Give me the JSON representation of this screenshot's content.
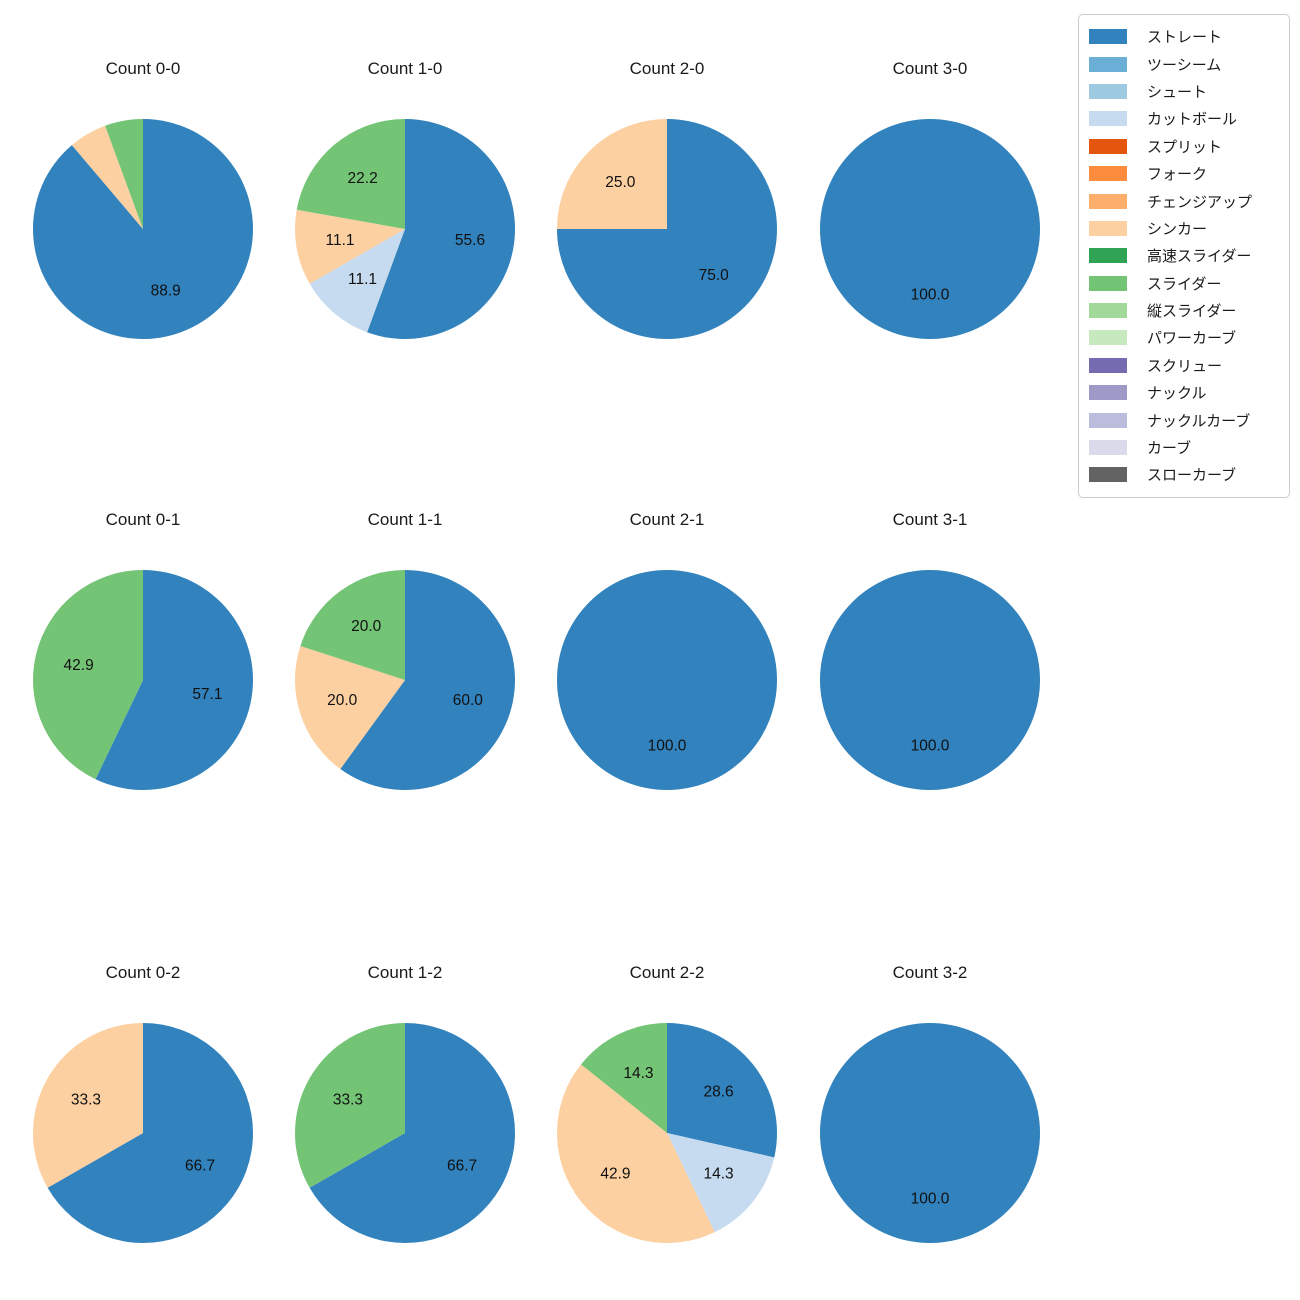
{
  "figure": {
    "background": "#ffffff"
  },
  "chart_data": {
    "type": "pie",
    "layout": {
      "rows": 3,
      "cols": 4,
      "legend_position": "upper-right",
      "start_angle_deg": 90,
      "direction": "clockwise",
      "grid": false
    },
    "legend": {
      "items": [
        {
          "label": "ストレート",
          "color": "#3182bd"
        },
        {
          "label": "ツーシーム",
          "color": "#6baed6"
        },
        {
          "label": "シュート",
          "color": "#9ecae1"
        },
        {
          "label": "カットボール",
          "color": "#c6dbef"
        },
        {
          "label": "スプリット",
          "color": "#e6550d"
        },
        {
          "label": "フォーク",
          "color": "#fd8d3c"
        },
        {
          "label": "チェンジアップ",
          "color": "#fdae6b"
        },
        {
          "label": "シンカー",
          "color": "#fdd0a2"
        },
        {
          "label": "高速スライダー",
          "color": "#31a354"
        },
        {
          "label": "スライダー",
          "color": "#74c476"
        },
        {
          "label": "縦スライダー",
          "color": "#a1d99b"
        },
        {
          "label": "パワーカーブ",
          "color": "#c7e9c0"
        },
        {
          "label": "スクリュー",
          "color": "#756bb1"
        },
        {
          "label": "ナックル",
          "color": "#9e9ac8"
        },
        {
          "label": "ナックルカーブ",
          "color": "#bcbddc"
        },
        {
          "label": "カーブ",
          "color": "#dadaeb"
        },
        {
          "label": "スローカーブ",
          "color": "#636363"
        }
      ]
    },
    "charts": [
      {
        "title": "Count 0-0",
        "slices": [
          {
            "name": "ストレート",
            "value": 88.9,
            "label": "88.9"
          },
          {
            "name": "シンカー",
            "value": 5.6,
            "label": null
          },
          {
            "name": "スライダー",
            "value": 5.6,
            "label": null
          }
        ]
      },
      {
        "title": "Count 1-0",
        "slices": [
          {
            "name": "ストレート",
            "value": 55.6,
            "label": "55.6"
          },
          {
            "name": "カットボール",
            "value": 11.1,
            "label": "11.1"
          },
          {
            "name": "シンカー",
            "value": 11.1,
            "label": "11.1"
          },
          {
            "name": "スライダー",
            "value": 22.2,
            "label": "22.2"
          }
        ]
      },
      {
        "title": "Count 2-0",
        "slices": [
          {
            "name": "ストレート",
            "value": 75.0,
            "label": "75.0"
          },
          {
            "name": "シンカー",
            "value": 25.0,
            "label": "25.0"
          }
        ]
      },
      {
        "title": "Count 3-0",
        "slices": [
          {
            "name": "ストレート",
            "value": 100.0,
            "label": "100.0"
          }
        ]
      },
      {
        "title": "Count 0-1",
        "slices": [
          {
            "name": "ストレート",
            "value": 57.1,
            "label": "57.1"
          },
          {
            "name": "スライダー",
            "value": 42.9,
            "label": "42.9"
          }
        ]
      },
      {
        "title": "Count 1-1",
        "slices": [
          {
            "name": "ストレート",
            "value": 60.0,
            "label": "60.0"
          },
          {
            "name": "シンカー",
            "value": 20.0,
            "label": "20.0"
          },
          {
            "name": "スライダー",
            "value": 20.0,
            "label": "20.0"
          }
        ]
      },
      {
        "title": "Count 2-1",
        "slices": [
          {
            "name": "ストレート",
            "value": 100.0,
            "label": "100.0"
          }
        ]
      },
      {
        "title": "Count 3-1",
        "slices": [
          {
            "name": "ストレート",
            "value": 100.0,
            "label": "100.0"
          }
        ]
      },
      {
        "title": "Count 0-2",
        "slices": [
          {
            "name": "ストレート",
            "value": 66.7,
            "label": "66.7"
          },
          {
            "name": "シンカー",
            "value": 33.3,
            "label": "33.3"
          }
        ]
      },
      {
        "title": "Count 1-2",
        "slices": [
          {
            "name": "ストレート",
            "value": 66.7,
            "label": "66.7"
          },
          {
            "name": "スライダー",
            "value": 33.3,
            "label": "33.3"
          }
        ]
      },
      {
        "title": "Count 2-2",
        "slices": [
          {
            "name": "ストレート",
            "value": 28.6,
            "label": "28.6"
          },
          {
            "name": "カットボール",
            "value": 14.3,
            "label": "14.3"
          },
          {
            "name": "シンカー",
            "value": 42.9,
            "label": "42.9"
          },
          {
            "name": "スライダー",
            "value": 14.3,
            "label": "14.3"
          }
        ]
      },
      {
        "title": "Count 3-2",
        "slices": [
          {
            "name": "ストレート",
            "value": 100.0,
            "label": "100.0"
          }
        ]
      }
    ]
  }
}
